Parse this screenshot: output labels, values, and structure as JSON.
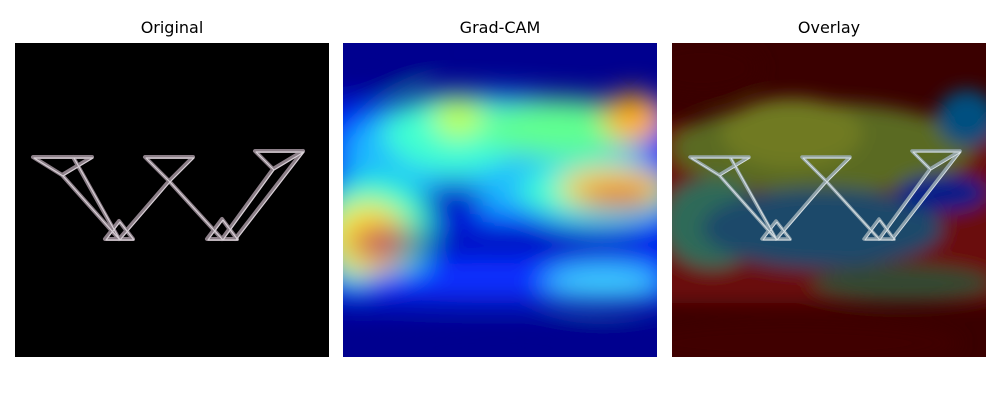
{
  "panels": [
    {
      "title": "Original"
    },
    {
      "title": "Grad-CAM"
    },
    {
      "title": "Overlay"
    }
  ],
  "colors": {
    "background": "#000000",
    "jet_low": "#00008f",
    "jet_high": "#8f0000",
    "stroke": "#8c7f88"
  }
}
